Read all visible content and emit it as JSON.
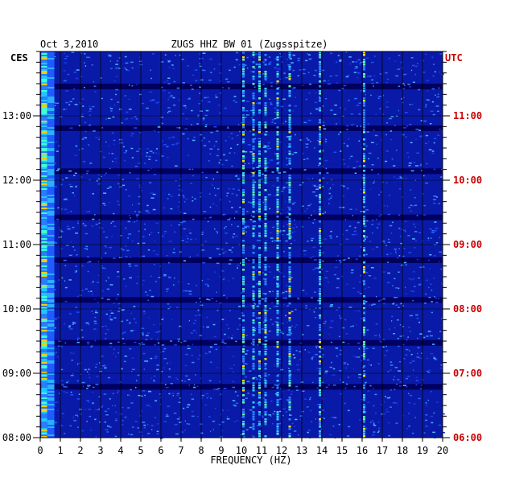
{
  "chart_data": {
    "type": "heatmap",
    "date": "Oct 3,2010",
    "station": "ZUGS HHZ BW 01 (Zugsspitze)",
    "xlabel": "FREQUENCY (HZ)",
    "xlim": [
      0,
      20
    ],
    "x_ticks": [
      "0",
      "1",
      "2",
      "3",
      "4",
      "5",
      "6",
      "7",
      "8",
      "9",
      "10",
      "11",
      "12",
      "13",
      "14",
      "15",
      "16",
      "17",
      "18",
      "19",
      "20"
    ],
    "left_axis": {
      "label": "CES",
      "range": [
        "08:00",
        "14:00"
      ],
      "ticks": [
        "13:00",
        "12:00",
        "11:00",
        "10:00",
        "09:00",
        "08:00"
      ]
    },
    "right_axis": {
      "label": "UTC",
      "range": [
        "06:00",
        "12:00"
      ],
      "ticks": [
        "11:00",
        "10:00",
        "09:00",
        "08:00",
        "07:00",
        "06:00"
      ]
    },
    "frequency_lines_hz": [
      10.1,
      10.6,
      10.9,
      11.2,
      11.8,
      12.4,
      13.9,
      16.1
    ],
    "quiet_bands_ces": [
      "13:27",
      "12:48",
      "12:08",
      "11:25",
      "10:45",
      "10:08",
      "09:28",
      "08:47"
    ],
    "colors": {
      "background": "#0a1aa8",
      "accent_left": "#d00000",
      "frame": "#000000"
    }
  }
}
